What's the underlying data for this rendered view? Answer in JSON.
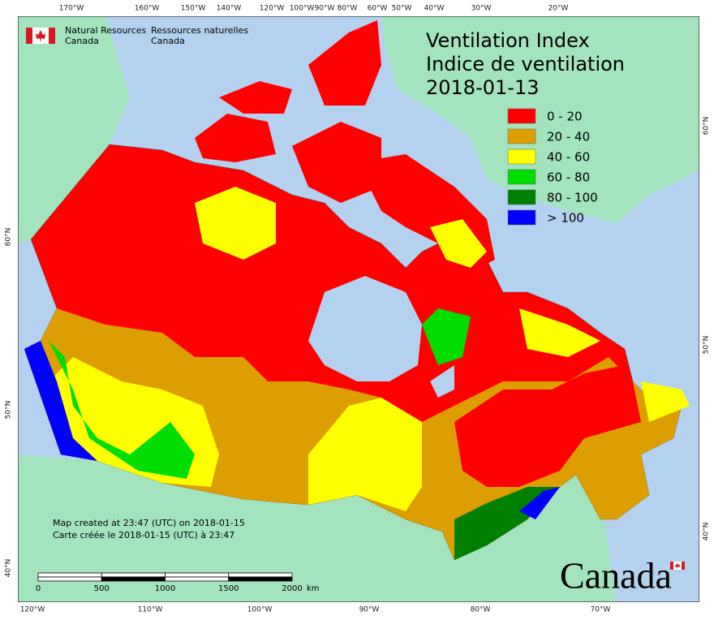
{
  "agency": {
    "en_line1": "Natural Resources",
    "en_line2": "Canada",
    "fr_line1": "Ressources naturelles",
    "fr_line2": "Canada"
  },
  "title": {
    "en": "Ventilation Index",
    "fr": "Indice de ventilation",
    "date": "2018-01-13"
  },
  "legend": [
    {
      "label": "0 - 20",
      "color": "#ff0000"
    },
    {
      "label": "20 - 40",
      "color": "#dc9e00"
    },
    {
      "label": "40 - 60",
      "color": "#ffff00"
    },
    {
      "label": "60 - 80",
      "color": "#00dd00"
    },
    {
      "label": "80 - 100",
      "color": "#008000"
    },
    {
      "label": "> 100",
      "color": "#0000ff"
    }
  ],
  "credit": {
    "en": "Map created at 23:47 (UTC) on 2018-01-15",
    "fr": "Carte créée le 2018-01-15 (UTC) à 23:47"
  },
  "scale_bar": {
    "ticks": [
      0,
      500,
      1000,
      1500,
      2000
    ],
    "unit": "km"
  },
  "graticule": {
    "top": [
      "170°W",
      "160°W",
      "150°W",
      "140°W",
      "120°W",
      "100°W",
      "90°W",
      "80°W",
      "60°W",
      "50°W",
      "40°W",
      "30°W",
      "20°W"
    ],
    "bottom": [
      "120°W",
      "110°W",
      "100°W",
      "90°W",
      "80°W",
      "70°W"
    ],
    "left": [
      "60°N",
      "50°N",
      "40°N"
    ],
    "right": [
      "60°N",
      "50°N",
      "40°N"
    ]
  },
  "wordmark": "Canada"
}
